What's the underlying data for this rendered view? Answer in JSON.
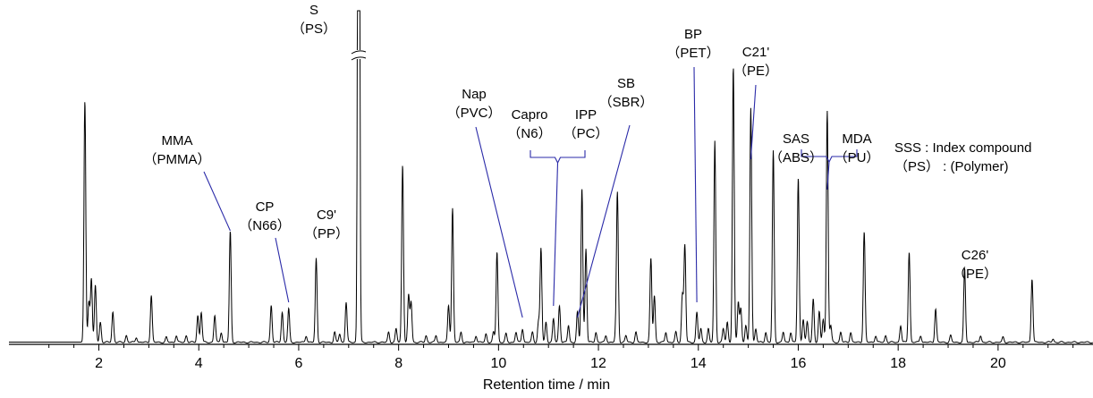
{
  "chart_data": {
    "type": "line",
    "title": "",
    "xlabel": "Retention time / min",
    "ylabel": "",
    "xlim": [
      0.2,
      21.9
    ],
    "ylim": [
      0,
      100
    ],
    "x_ticks": [
      "2",
      "4",
      "6",
      "8",
      "10",
      "12",
      "14",
      "16",
      "18",
      "20"
    ],
    "x_tick_values": [
      2,
      4,
      6,
      8,
      10,
      12,
      14,
      16,
      18,
      20
    ],
    "grid": false,
    "legend": "none",
    "axis_break": {
      "x": 7.2,
      "symbol": "≈"
    },
    "colors": {
      "trace": "#000000",
      "annotation": "#2a2aa8"
    },
    "key": {
      "line1": "SSS : Index compound",
      "line2": "（PS） : (Polymer)"
    },
    "peaks": [
      {
        "x": 1.72,
        "y": 72
      },
      {
        "x": 1.8,
        "y": 12
      },
      {
        "x": 1.85,
        "y": 19
      },
      {
        "x": 1.93,
        "y": 17
      },
      {
        "x": 2.03,
        "y": 6
      },
      {
        "x": 2.28,
        "y": 9
      },
      {
        "x": 2.55,
        "y": 2
      },
      {
        "x": 2.75,
        "y": 1.5
      },
      {
        "x": 3.05,
        "y": 14
      },
      {
        "x": 3.35,
        "y": 1.5
      },
      {
        "x": 3.55,
        "y": 2
      },
      {
        "x": 3.75,
        "y": 2
      },
      {
        "x": 3.98,
        "y": 8
      },
      {
        "x": 4.05,
        "y": 9
      },
      {
        "x": 4.32,
        "y": 8
      },
      {
        "x": 4.45,
        "y": 3
      },
      {
        "x": 4.63,
        "y": 33
      },
      {
        "x": 5.45,
        "y": 11
      },
      {
        "x": 5.67,
        "y": 9
      },
      {
        "x": 5.8,
        "y": 10
      },
      {
        "x": 6.15,
        "y": 2
      },
      {
        "x": 6.35,
        "y": 25
      },
      {
        "x": 6.72,
        "y": 3
      },
      {
        "x": 6.82,
        "y": 2.5
      },
      {
        "x": 6.95,
        "y": 12
      },
      {
        "x": 7.2,
        "y": 290
      },
      {
        "x": 7.8,
        "y": 3
      },
      {
        "x": 7.95,
        "y": 4
      },
      {
        "x": 8.08,
        "y": 53
      },
      {
        "x": 8.2,
        "y": 14
      },
      {
        "x": 8.25,
        "y": 12
      },
      {
        "x": 8.55,
        "y": 2
      },
      {
        "x": 8.75,
        "y": 2
      },
      {
        "x": 9.0,
        "y": 11
      },
      {
        "x": 9.08,
        "y": 40
      },
      {
        "x": 9.25,
        "y": 3
      },
      {
        "x": 9.55,
        "y": 2
      },
      {
        "x": 9.75,
        "y": 2.5
      },
      {
        "x": 9.9,
        "y": 3
      },
      {
        "x": 9.97,
        "y": 27
      },
      {
        "x": 10.15,
        "y": 2.5
      },
      {
        "x": 10.35,
        "y": 3
      },
      {
        "x": 10.48,
        "y": 4
      },
      {
        "x": 10.68,
        "y": 3
      },
      {
        "x": 10.8,
        "y": 6
      },
      {
        "x": 10.85,
        "y": 28
      },
      {
        "x": 10.95,
        "y": 6
      },
      {
        "x": 11.1,
        "y": 7
      },
      {
        "x": 11.22,
        "y": 11
      },
      {
        "x": 11.4,
        "y": 5
      },
      {
        "x": 11.58,
        "y": 9
      },
      {
        "x": 11.67,
        "y": 46
      },
      {
        "x": 11.75,
        "y": 28
      },
      {
        "x": 11.95,
        "y": 3
      },
      {
        "x": 12.15,
        "y": 2
      },
      {
        "x": 12.35,
        "y": 3
      },
      {
        "x": 12.38,
        "y": 44
      },
      {
        "x": 12.55,
        "y": 2
      },
      {
        "x": 12.75,
        "y": 3
      },
      {
        "x": 13.05,
        "y": 25
      },
      {
        "x": 13.12,
        "y": 14
      },
      {
        "x": 13.35,
        "y": 3
      },
      {
        "x": 13.55,
        "y": 3
      },
      {
        "x": 13.68,
        "y": 14
      },
      {
        "x": 13.73,
        "y": 29
      },
      {
        "x": 13.97,
        "y": 9
      },
      {
        "x": 14.05,
        "y": 4
      },
      {
        "x": 14.2,
        "y": 4
      },
      {
        "x": 14.33,
        "y": 60
      },
      {
        "x": 14.5,
        "y": 4
      },
      {
        "x": 14.58,
        "y": 6
      },
      {
        "x": 14.7,
        "y": 82
      },
      {
        "x": 14.8,
        "y": 12
      },
      {
        "x": 14.85,
        "y": 10
      },
      {
        "x": 14.95,
        "y": 5
      },
      {
        "x": 15.05,
        "y": 70
      },
      {
        "x": 15.15,
        "y": 4
      },
      {
        "x": 15.35,
        "y": 3
      },
      {
        "x": 15.5,
        "y": 57
      },
      {
        "x": 15.7,
        "y": 3
      },
      {
        "x": 15.85,
        "y": 3
      },
      {
        "x": 16.0,
        "y": 49
      },
      {
        "x": 16.1,
        "y": 7
      },
      {
        "x": 16.18,
        "y": 6
      },
      {
        "x": 16.3,
        "y": 13
      },
      {
        "x": 16.42,
        "y": 9
      },
      {
        "x": 16.5,
        "y": 7
      },
      {
        "x": 16.58,
        "y": 69
      },
      {
        "x": 16.65,
        "y": 5
      },
      {
        "x": 16.85,
        "y": 3
      },
      {
        "x": 17.05,
        "y": 3
      },
      {
        "x": 17.32,
        "y": 33
      },
      {
        "x": 17.55,
        "y": 2
      },
      {
        "x": 17.75,
        "y": 2
      },
      {
        "x": 18.05,
        "y": 5
      },
      {
        "x": 18.22,
        "y": 27
      },
      {
        "x": 18.45,
        "y": 2
      },
      {
        "x": 18.75,
        "y": 10
      },
      {
        "x": 19.05,
        "y": 2
      },
      {
        "x": 19.33,
        "y": 22
      },
      {
        "x": 19.65,
        "y": 2
      },
      {
        "x": 20.1,
        "y": 1.5
      },
      {
        "x": 20.68,
        "y": 19
      },
      {
        "x": 21.1,
        "y": 1
      }
    ],
    "annotations": [
      {
        "lines": [
          "MMA",
          "（PMMA）"
        ],
        "x": 4.63
      },
      {
        "lines": [
          "CP",
          "（N66）"
        ],
        "x": 5.8
      },
      {
        "lines": [
          "C9'",
          "（PP）"
        ],
        "x": 6.35
      },
      {
        "lines": [
          "S",
          "（PS）"
        ],
        "x": 7.2
      },
      {
        "lines": [
          "Nap",
          "（PVC）"
        ],
        "x": 10.48
      },
      {
        "lines": [
          "Capro",
          "（N6）"
        ],
        "x": 11.1
      },
      {
        "lines": [
          "IPP",
          "（PC）"
        ],
        "x": 11.1
      },
      {
        "lines": [
          "SB",
          "（SBR）"
        ],
        "x": 11.58
      },
      {
        "lines": [
          "BP",
          "（PET）"
        ],
        "x": 13.97
      },
      {
        "lines": [
          "C21'",
          "（PE）"
        ],
        "x": 15.05
      },
      {
        "lines": [
          "SAS",
          "（ABS）"
        ],
        "x": 16.58
      },
      {
        "lines": [
          "MDA",
          "（PU）"
        ],
        "x": 16.58
      },
      {
        "lines": [
          "C26'",
          "（PE）"
        ],
        "x": 19.33
      }
    ]
  }
}
